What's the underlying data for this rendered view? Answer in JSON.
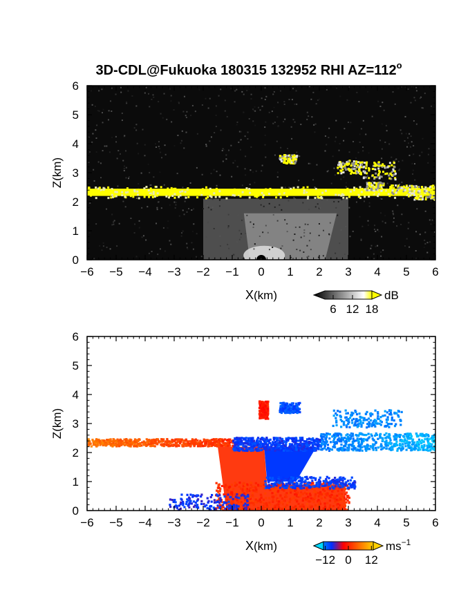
{
  "title": "3D-CDL@Fukuoka 180315 132952 RHI AZ=112",
  "title_sup": "o",
  "chart_data": [
    {
      "type": "heatmap",
      "name": "backscatter-snr",
      "xlabel_main": "X",
      "xlabel_unit": "(km)",
      "ylabel": "Z(km)",
      "xlim": [
        -6,
        6
      ],
      "ylim": [
        0,
        6
      ],
      "xticks": [
        "−6",
        "−5",
        "−4",
        "−3",
        "−2",
        "−1",
        "0",
        "1",
        "2",
        "3",
        "4",
        "5",
        "6"
      ],
      "yticks": [
        "0",
        "1",
        "2",
        "3",
        "4",
        "5",
        "6"
      ],
      "colorbar": {
        "unit": "dB",
        "ticks": [
          "6",
          "12",
          "18"
        ],
        "range": [
          0,
          21
        ],
        "colors": [
          "#000000",
          "#ffffff",
          "#ffff00"
        ]
      },
      "features": {
        "noise_level": "low",
        "cloud_base_layer": {
          "x": [
            -6,
            6
          ],
          "z": [
            2.2,
            2.45
          ],
          "level": "saturated"
        },
        "cloud_patches": [
          {
            "x": [
              0.6,
              1.2
            ],
            "z": [
              3.35,
              3.65
            ]
          },
          {
            "x": [
              2.6,
              3.4
            ],
            "z": [
              3.0,
              3.45
            ]
          },
          {
            "x": [
              3.4,
              4.6
            ],
            "z": [
              2.8,
              3.4
            ]
          },
          {
            "x": [
              3.6,
              4.2
            ],
            "z": [
              2.4,
              2.7
            ]
          },
          {
            "x": [
              4.4,
              5.4
            ],
            "z": [
              2.3,
              2.6
            ]
          },
          {
            "x": [
              5.2,
              6.0
            ],
            "z": [
              2.1,
              2.6
            ]
          }
        ],
        "boundary_layer": {
          "x": [
            -2,
            3
          ],
          "z": [
            0,
            2.1
          ],
          "level": "moderate"
        }
      }
    },
    {
      "type": "heatmap",
      "name": "radial-velocity",
      "xlabel_main": "X",
      "xlabel_unit": "(km)",
      "ylabel": "Z(km)",
      "xlim": [
        -6,
        6
      ],
      "ylim": [
        0,
        6
      ],
      "xticks": [
        "−6",
        "−5",
        "−4",
        "−3",
        "−2",
        "−1",
        "0",
        "1",
        "2",
        "3",
        "4",
        "5",
        "6"
      ],
      "yticks": [
        "0",
        "1",
        "2",
        "3",
        "4",
        "5",
        "6"
      ],
      "colorbar": {
        "unit": "ms",
        "unit_sup": "−1",
        "ticks": [
          "−12",
          "0",
          "12"
        ],
        "range": [
          -18,
          18
        ],
        "colors": [
          "#00c8ff",
          "#0030ff",
          "#ff0000",
          "#ffd000"
        ]
      },
      "features": {
        "layer_left": {
          "x": [
            -6,
            -1
          ],
          "z": [
            2.25,
            2.5
          ],
          "velocity": [
            10,
            4
          ]
        },
        "layer_center": {
          "x": [
            -1,
            2
          ],
          "z": [
            2.1,
            2.55
          ],
          "velocity": [
            -8,
            -8
          ]
        },
        "layer_right": {
          "x": [
            2,
            6
          ],
          "z": [
            2.1,
            2.7
          ],
          "velocity": [
            -12,
            -16
          ]
        },
        "upper_patches": [
          {
            "x": [
              0.6,
              1.3
            ],
            "z": [
              3.4,
              3.75
            ],
            "velocity": -9
          },
          {
            "x": [
              2.4,
              4.8
            ],
            "z": [
              2.9,
              3.5
            ],
            "velocity": -13
          },
          {
            "x": [
              -0.1,
              0.2
            ],
            "z": [
              3.2,
              3.8
            ],
            "velocity": 2
          }
        ],
        "boundary_layer_positive": {
          "x": [
            -1.6,
            3.0
          ],
          "z": [
            0,
            2.2
          ],
          "velocity": 3
        },
        "boundary_layer_negative": {
          "x": [
            0.1,
            3.2
          ],
          "z": [
            0.8,
            2.2
          ],
          "velocity": -8
        }
      }
    }
  ]
}
